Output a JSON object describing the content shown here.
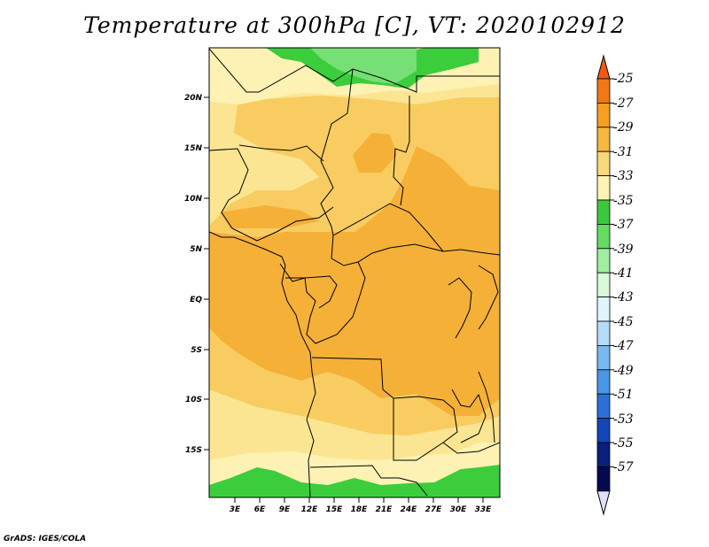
{
  "title": "Temperature at 300hPa [C], VT: 2020102912",
  "footer": "GrADS: IGES/COLA",
  "map": {
    "lat_labels": [
      "20N",
      "15N",
      "10N",
      "5N",
      "EQ",
      "5S",
      "10S",
      "15S"
    ],
    "lon_labels": [
      "3E",
      "6E",
      "9E",
      "12E",
      "15E",
      "18E",
      "21E",
      "24E",
      "27E",
      "30E",
      "33E"
    ]
  },
  "colorbar": {
    "labels": [
      "-25",
      "-27",
      "-29",
      "-31",
      "-33",
      "-35",
      "-37",
      "-39",
      "-41",
      "-43",
      "-45",
      "-47",
      "-49",
      "-51",
      "-53",
      "-55",
      "-57"
    ],
    "colors": [
      "#f05a10",
      "#f07818",
      "#f5a020",
      "#f5b840",
      "#f8d878",
      "#fdf3b4",
      "#3cc83c",
      "#64dc64",
      "#a0eea0",
      "#d8f8d8",
      "#e0f4ff",
      "#b4dcf8",
      "#78baf0",
      "#4a96e6",
      "#2a70d8",
      "#1446b8",
      "#0a1e7a",
      "#050a50",
      "#e0e0ff"
    ]
  },
  "colors": {
    "t_29": "#f5b038",
    "t_31": "#f8cc60",
    "t_33": "#fbe592",
    "t_35": "#fdf2b4",
    "t_37": "#3ccd3c",
    "t_39": "#76e076"
  }
}
